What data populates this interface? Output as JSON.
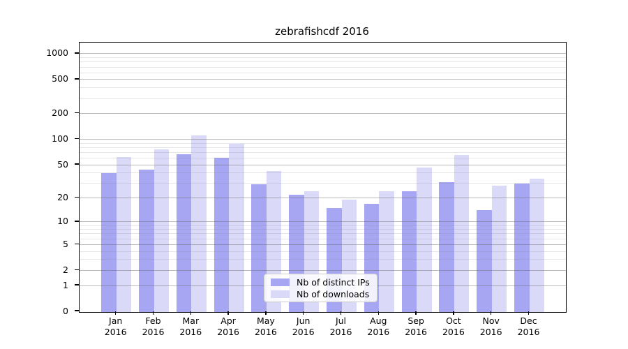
{
  "title": "zebrafishcdf 2016",
  "chart_data": {
    "type": "bar",
    "title": "zebrafishcdf 2016",
    "categories": [
      "Jan\n2016",
      "Feb\n2016",
      "Mar\n2016",
      "Apr\n2016",
      "May\n2016",
      "Jun\n2016",
      "Jul\n2016",
      "Aug\n2016",
      "Sep\n2016",
      "Oct\n2016",
      "Nov\n2016",
      "Dec\n2016"
    ],
    "series": [
      {
        "name": "Nb of distinct IPs",
        "color": "#a6a6f2",
        "values": [
          40,
          44,
          67,
          60,
          29,
          22,
          15,
          17,
          24,
          31,
          14,
          30
        ]
      },
      {
        "name": "Nb of downloads",
        "color": "#dadaf8",
        "values": [
          62,
          76,
          110,
          88,
          42,
          24,
          19,
          24,
          46,
          65,
          28,
          34
        ]
      }
    ],
    "xlabel": "",
    "ylabel": "",
    "y_scale": "log1p",
    "ylim": [
      0,
      1348
    ],
    "y_ticks": [
      0,
      1,
      2,
      5,
      10,
      20,
      50,
      100,
      200,
      500,
      1000
    ],
    "y_minor_ticks": [
      3,
      4,
      6,
      7,
      8,
      9,
      30,
      40,
      60,
      70,
      80,
      90,
      300,
      400,
      600,
      700,
      800,
      900
    ],
    "grid": "horizontal major+minor",
    "legend_position": "lower center",
    "colors": {
      "background": "#ffffff",
      "axis": "#000000",
      "major_grid_rgba": "rgba(100,100,100,0.45)",
      "minor_grid_rgba": "rgba(130,130,140,0.20)"
    }
  }
}
